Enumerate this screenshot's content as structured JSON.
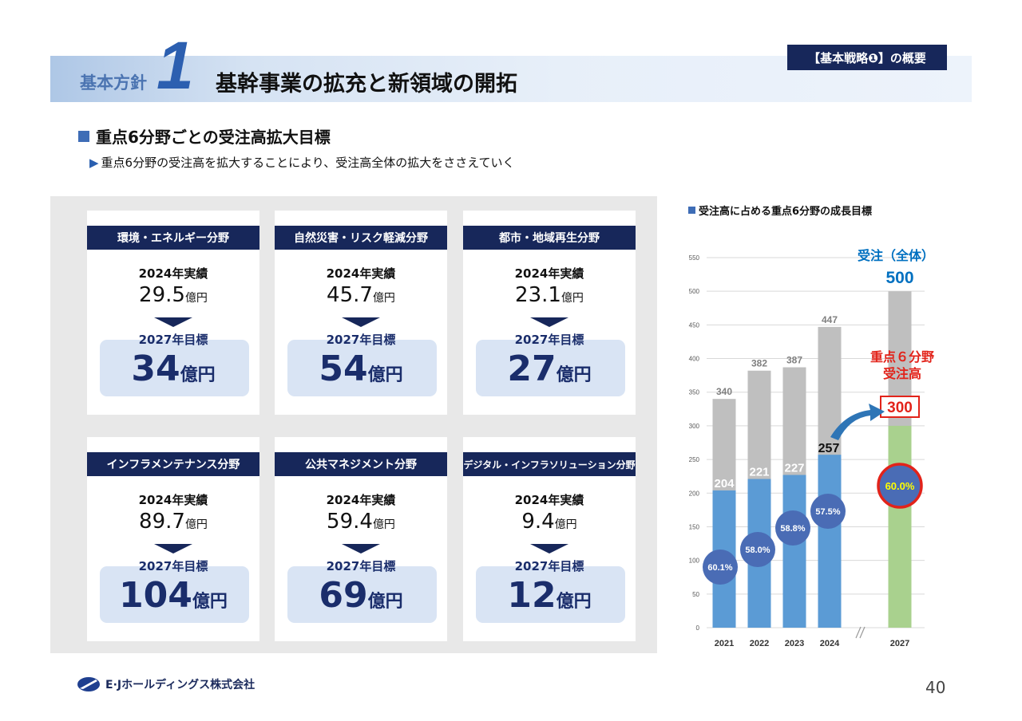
{
  "header": {
    "policy_label": "基本方針",
    "policy_number": "1",
    "title": "基幹事業の拡充と新領域の開拓",
    "strategy_tag": "【基本戦略❶】の概要"
  },
  "section": {
    "title": "重点6分野ごとの受注高拡大目標",
    "subtitle": "重点6分野の受注高を拡大することにより、受注高全体の拡大をささえていく"
  },
  "cards": [
    {
      "name": "環境・エネルギー分野",
      "actual_label": "2024年実績",
      "actual_value": "29.5",
      "actual_unit": "億円",
      "target_label": "2027年目標",
      "target_value": "34",
      "target_unit": "億円"
    },
    {
      "name": "自然災害・リスク軽減分野",
      "actual_label": "2024年実績",
      "actual_value": "45.7",
      "actual_unit": "億円",
      "target_label": "2027年目標",
      "target_value": "54",
      "target_unit": "億円"
    },
    {
      "name": "都市・地域再生分野",
      "actual_label": "2024年実績",
      "actual_value": "23.1",
      "actual_unit": "億円",
      "target_label": "2027年目標",
      "target_value": "27",
      "target_unit": "億円"
    },
    {
      "name": "インフラメンテナンス分野",
      "actual_label": "2024年実績",
      "actual_value": "89.7",
      "actual_unit": "億円",
      "target_label": "2027年目標",
      "target_value": "104",
      "target_unit": "億円"
    },
    {
      "name": "公共マネジメント分野",
      "actual_label": "2024年実績",
      "actual_value": "59.4",
      "actual_unit": "億円",
      "target_label": "2027年目標",
      "target_value": "69",
      "target_unit": "億円"
    },
    {
      "name": "デジタル・インフラソリューション分野",
      "actual_label": "2024年実績",
      "actual_value": "9.4",
      "actual_unit": "億円",
      "target_label": "2027年目標",
      "target_value": "12",
      "target_unit": "億円"
    }
  ],
  "chart_title": "受注高に占める重点6分野の成長目標",
  "chart_data": {
    "type": "bar",
    "categories": [
      "2021",
      "2022",
      "2023",
      "2024",
      "2027"
    ],
    "series": [
      {
        "values": [
          204,
          221,
          227,
          257,
          300
        ]
      },
      {
        "values": [
          340,
          382,
          387,
          447,
          500
        ]
      }
    ],
    "total_labels": [
      "340",
      "382",
      "387",
      "447",
      "500"
    ],
    "focus_labels": [
      "204",
      "221",
      "227",
      "257",
      "300"
    ],
    "percent_labels": [
      "60.1%",
      "58.0%",
      "58.8%",
      "57.5%",
      "60.0%"
    ],
    "ylim": [
      0,
      550
    ],
    "yticks": [
      0,
      50,
      100,
      150,
      200,
      250,
      300,
      350,
      400,
      450,
      500,
      550
    ],
    "annotations": {
      "total": "受注（全体）",
      "focus_line1": "重点６分野",
      "focus_line2": "受注高"
    },
    "colors": {
      "total": "#bfbfbf",
      "focus": "#5b9bd5",
      "focus_target": "#a9d18e",
      "bubble": "#4a6cb5",
      "highlight": "#e2231a",
      "target_text": "#0070c0",
      "grid": "#d9d9d9"
    }
  },
  "footer": {
    "company": "E·Jホールディングス株式会社",
    "page_number": "40"
  }
}
